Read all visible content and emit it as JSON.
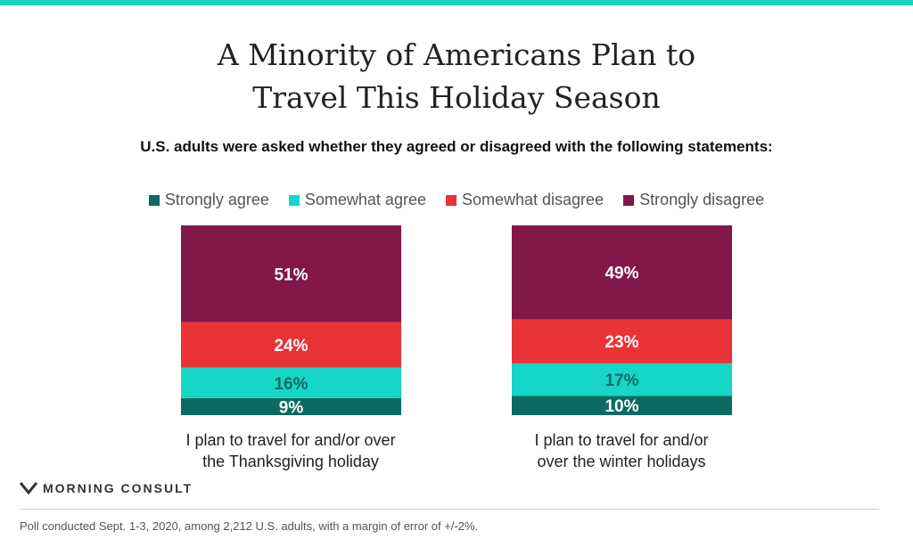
{
  "header": {
    "title_line1": "A Minority of Americans Plan to",
    "title_line2": "Travel This Holiday Season",
    "subtitle": "U.S. adults were asked whether they agreed or disagreed with the following statements:"
  },
  "colors": {
    "strongly_agree": "#0b6b63",
    "somewhat_agree": "#16d6c8",
    "somewhat_disagree": "#e93336",
    "strongly_disagree": "#82174a",
    "accent": "#1fd1c2"
  },
  "chart_data": {
    "type": "bar",
    "stacked": true,
    "categories": [
      "I plan to travel for and/or over the Thanksgiving holiday",
      "I plan to travel for and/or over the winter holidays"
    ],
    "category_lines": [
      [
        "I plan to travel for and/or over",
        "the Thanksgiving holiday"
      ],
      [
        "I plan to travel for and/or",
        "over the winter holidays"
      ]
    ],
    "series": [
      {
        "name": "Strongly agree",
        "values": [
          9,
          10
        ],
        "labels": [
          "9%",
          "10%"
        ]
      },
      {
        "name": "Somewhat agree",
        "values": [
          16,
          17
        ],
        "labels": [
          "16%",
          "17%"
        ]
      },
      {
        "name": "Somewhat disagree",
        "values": [
          24,
          23
        ],
        "labels": [
          "24%",
          "23%"
        ]
      },
      {
        "name": "Strongly disagree",
        "values": [
          51,
          49
        ],
        "labels": [
          "51%",
          "49%"
        ]
      }
    ],
    "legend_position": "top",
    "ylim": [
      0,
      100
    ]
  },
  "footer": {
    "brand": "MORNING CONSULT",
    "note": "Poll conducted Sept. 1-3, 2020, among 2,212 U.S. adults, with a margin of error of +/-2%."
  }
}
